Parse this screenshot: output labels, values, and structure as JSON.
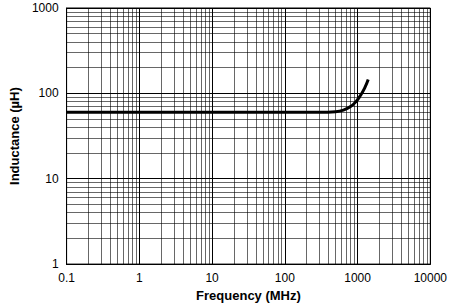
{
  "chart_data": {
    "type": "line",
    "x_label": "Frequency (MHz)",
    "y_label": "Inductance (µH)",
    "x": [
      0.1,
      1,
      10,
      100,
      300,
      500,
      650,
      800,
      950,
      1100,
      1250,
      1400
    ],
    "values": [
      60,
      60,
      60,
      60,
      60,
      61,
      64,
      70,
      80,
      95,
      115,
      145
    ],
    "color": "#000000",
    "xlim": [
      0.1,
      10000
    ],
    "ylim": [
      1,
      1000
    ],
    "xticks": [
      0.1,
      1,
      10,
      100,
      1000,
      10000
    ],
    "yticks": [
      1,
      10,
      100,
      1000
    ],
    "log": true,
    "grid": true
  }
}
